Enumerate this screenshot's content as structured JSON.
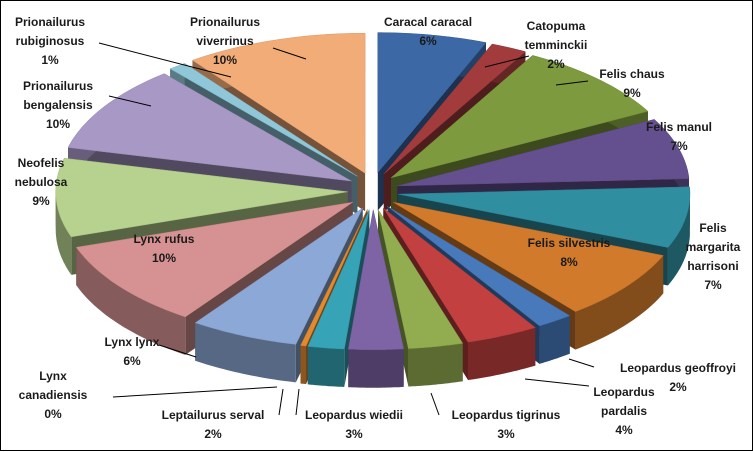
{
  "chart_data": {
    "type": "pie",
    "style": "exploded 3-D pie",
    "title": "",
    "slices": [
      {
        "name": "Caracal caracal",
        "pct_label": "6%",
        "value": 6,
        "color": "#3C68A6"
      },
      {
        "name": "Catopuma temminckii",
        "pct_label": "2%",
        "value": 2,
        "color": "#A23C3C"
      },
      {
        "name": "Felis chaus",
        "pct_label": "9%",
        "value": 9,
        "color": "#7D9A3E"
      },
      {
        "name": "Felis manul",
        "pct_label": "7%",
        "value": 7,
        "color": "#65508F"
      },
      {
        "name": "Felis margarita harrisoni",
        "pct_label": "7%",
        "value": 7,
        "color": "#2F8EA0"
      },
      {
        "name": "Felis silvestris",
        "pct_label": "8%",
        "value": 8,
        "color": "#D27A2B"
      },
      {
        "name": "Leopardus geoffroyi",
        "pct_label": "2%",
        "value": 2,
        "color": "#4779BB"
      },
      {
        "name": "Leopardus pardalis",
        "pct_label": "4%",
        "value": 4,
        "color": "#C2403F"
      },
      {
        "name": "Leopardus tigrinus",
        "pct_label": "3%",
        "value": 3,
        "color": "#92AD4F"
      },
      {
        "name": "Leopardus wiedii",
        "pct_label": "3%",
        "value": 3,
        "color": "#7E63A5"
      },
      {
        "name": "Leptailurus serval",
        "pct_label": "2%",
        "value": 2,
        "color": "#36A3B7"
      },
      {
        "name": "Lynx canadiensis",
        "pct_label": "0%",
        "value": 0.3,
        "color": "#E38A2E"
      },
      {
        "name": "Lynx lynx",
        "pct_label": "6%",
        "value": 6,
        "color": "#8CA8D6"
      },
      {
        "name": "Lynx rufus",
        "pct_label": "10%",
        "value": 10,
        "color": "#D69292"
      },
      {
        "name": "Neofelis nebulosa",
        "pct_label": "9%",
        "value": 9,
        "color": "#B7D28E"
      },
      {
        "name": "Prionailurus bengalensis",
        "pct_label": "10%",
        "value": 10,
        "color": "#A898C6"
      },
      {
        "name": "Prionailurus rubiginosus",
        "pct_label": "1%",
        "value": 1,
        "color": "#8FC6D8"
      },
      {
        "name": "Prionailurus viverrinus",
        "pct_label": "10%",
        "value": 10,
        "color": "#F2AC78"
      }
    ]
  }
}
